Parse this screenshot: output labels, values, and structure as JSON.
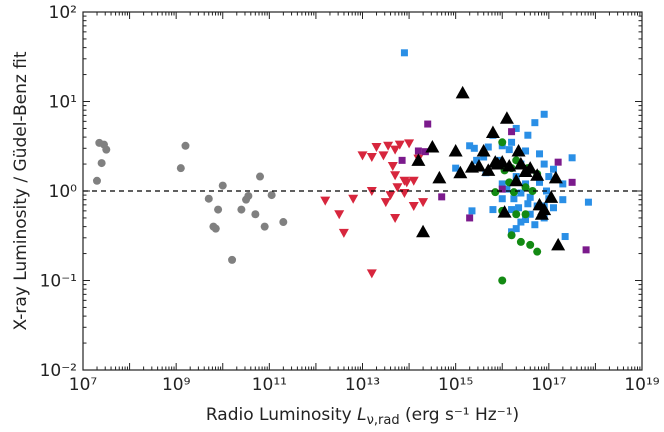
{
  "chart_data": {
    "type": "scatter",
    "xscale": "log",
    "yscale": "log",
    "xlim": [
      10000000.0,
      1e+19
    ],
    "ylim": [
      0.01,
      100
    ],
    "xlabel": "Radio Luminosity Lν,rad (erg s⁻¹ Hz⁻¹)",
    "ylabel": "X-ray Luminosity / Güdel-Benz fit",
    "x_ticks": [
      7,
      9,
      11,
      13,
      15,
      17,
      19
    ],
    "y_ticks": [
      -2,
      -1,
      0,
      1,
      2
    ],
    "x_tick_labels": [
      "10⁷",
      "10⁹",
      "10¹¹",
      "10¹³",
      "10¹⁵",
      "10¹⁷",
      "10¹⁹"
    ],
    "y_tick_labels": [
      "10⁻²",
      "10⁻¹",
      "10⁰",
      "10¹",
      "10²"
    ],
    "reference_line": {
      "y": 1.0,
      "style": "dashed"
    },
    "series": [
      {
        "name": "gray circles",
        "marker": "circle",
        "color": "#808080",
        "points": [
          [
            7.35,
            3.45
          ],
          [
            7.45,
            3.3
          ],
          [
            7.5,
            2.9
          ],
          [
            7.4,
            2.05
          ],
          [
            7.3,
            1.3
          ],
          [
            9.2,
            3.2
          ],
          [
            9.1,
            1.8
          ],
          [
            10.0,
            1.15
          ],
          [
            9.7,
            0.82
          ],
          [
            10.4,
            0.62
          ],
          [
            10.5,
            0.8
          ],
          [
            10.55,
            0.88
          ],
          [
            10.8,
            1.45
          ],
          [
            11.05,
            0.9
          ],
          [
            9.9,
            0.62
          ],
          [
            10.7,
            0.55
          ],
          [
            10.9,
            0.4
          ],
          [
            11.3,
            0.45
          ],
          [
            9.8,
            0.4
          ],
          [
            9.85,
            0.38
          ],
          [
            10.2,
            0.17
          ]
        ]
      },
      {
        "name": "red triangles",
        "marker": "triangle-down",
        "color": "#d7263d",
        "points": [
          [
            13.3,
            3.1
          ],
          [
            13.55,
            3.2
          ],
          [
            13.8,
            3.3
          ],
          [
            14.0,
            3.4
          ],
          [
            13.7,
            2.9
          ],
          [
            13.0,
            2.5
          ],
          [
            13.2,
            2.4
          ],
          [
            13.45,
            2.5
          ],
          [
            13.65,
            1.9
          ],
          [
            14.2,
            2.3
          ],
          [
            13.7,
            1.5
          ],
          [
            13.9,
            1.3
          ],
          [
            13.95,
            1.25
          ],
          [
            14.1,
            1.3
          ],
          [
            13.75,
            1.1
          ],
          [
            13.2,
            1.0
          ],
          [
            13.9,
            0.95
          ],
          [
            13.6,
            0.9
          ],
          [
            12.2,
            0.78
          ],
          [
            12.8,
            0.82
          ],
          [
            13.5,
            0.75
          ],
          [
            14.3,
            0.75
          ],
          [
            14.1,
            0.68
          ],
          [
            12.5,
            0.55
          ],
          [
            13.7,
            0.5
          ],
          [
            12.6,
            0.34
          ],
          [
            13.2,
            0.12
          ]
        ]
      },
      {
        "name": "blue squares",
        "marker": "square",
        "color": "#2a8fe6",
        "points": [
          [
            13.9,
            35
          ],
          [
            16.9,
            7.2
          ],
          [
            16.7,
            5.8
          ],
          [
            16.3,
            5.0
          ],
          [
            16.55,
            4.2
          ],
          [
            15.8,
            4.2
          ],
          [
            16.2,
            3.5
          ],
          [
            15.3,
            3.2
          ],
          [
            15.4,
            3.0
          ],
          [
            15.7,
            3.1
          ],
          [
            16.0,
            3.2
          ],
          [
            16.15,
            2.9
          ],
          [
            16.5,
            2.8
          ],
          [
            16.8,
            2.6
          ],
          [
            15.6,
            2.4
          ],
          [
            17.5,
            2.35
          ],
          [
            15.45,
            2.2
          ],
          [
            15.9,
            2.2
          ],
          [
            16.4,
            2.0
          ],
          [
            16.9,
            2.0
          ],
          [
            17.1,
            1.75
          ],
          [
            15.0,
            1.8
          ],
          [
            15.65,
            1.6
          ],
          [
            16.3,
            1.45
          ],
          [
            17.0,
            1.45
          ],
          [
            16.0,
            1.2
          ],
          [
            16.5,
            1.2
          ],
          [
            16.8,
            1.25
          ],
          [
            17.3,
            1.2
          ],
          [
            16.1,
            1.05
          ],
          [
            16.4,
            0.95
          ],
          [
            16.95,
            1.0
          ],
          [
            16.0,
            0.82
          ],
          [
            16.6,
            0.85
          ],
          [
            16.25,
            0.82
          ],
          [
            17.0,
            0.82
          ],
          [
            17.3,
            0.8
          ],
          [
            17.85,
            0.75
          ],
          [
            16.55,
            0.72
          ],
          [
            16.75,
            0.68
          ],
          [
            16.9,
            0.68
          ],
          [
            17.1,
            0.65
          ],
          [
            16.35,
            0.65
          ],
          [
            16.2,
            0.62
          ],
          [
            15.8,
            0.62
          ],
          [
            15.35,
            0.6
          ],
          [
            16.6,
            0.55
          ],
          [
            16.9,
            0.5
          ],
          [
            16.5,
            0.48
          ],
          [
            16.4,
            0.45
          ],
          [
            16.7,
            0.42
          ],
          [
            16.3,
            0.38
          ],
          [
            16.2,
            0.35
          ],
          [
            17.35,
            0.31
          ]
        ]
      },
      {
        "name": "purple squares",
        "marker": "square",
        "color": "#7b1a8c",
        "points": [
          [
            14.4,
            5.6
          ],
          [
            16.2,
            4.6
          ],
          [
            14.2,
            2.8
          ],
          [
            14.35,
            2.75
          ],
          [
            13.85,
            2.2
          ],
          [
            17.2,
            2.1
          ],
          [
            17.5,
            1.25
          ],
          [
            14.7,
            0.86
          ],
          [
            15.3,
            0.5
          ],
          [
            17.8,
            0.22
          ],
          [
            16.0,
            1.05
          ]
        ]
      },
      {
        "name": "green circles",
        "marker": "circle",
        "color": "#138a13",
        "points": [
          [
            16.0,
            3.5
          ],
          [
            16.3,
            2.2
          ],
          [
            16.55,
            1.8
          ],
          [
            16.2,
            1.8
          ],
          [
            16.05,
            1.7
          ],
          [
            16.75,
            1.55
          ],
          [
            16.15,
            1.25
          ],
          [
            16.5,
            1.1
          ],
          [
            16.65,
            1.0
          ],
          [
            15.85,
            0.97
          ],
          [
            16.25,
            0.97
          ],
          [
            16.0,
            0.6
          ],
          [
            16.5,
            0.55
          ],
          [
            16.3,
            0.55
          ],
          [
            16.2,
            0.32
          ],
          [
            16.4,
            0.27
          ],
          [
            16.6,
            0.25
          ],
          [
            16.75,
            0.21
          ],
          [
            16.0,
            0.1
          ]
        ]
      },
      {
        "name": "black triangles",
        "marker": "triangle-up",
        "color": "#000000",
        "points": [
          [
            15.15,
            12.5
          ],
          [
            16.1,
            6.5
          ],
          [
            15.8,
            4.5
          ],
          [
            14.5,
            3.1
          ],
          [
            15.0,
            2.8
          ],
          [
            15.6,
            2.8
          ],
          [
            16.35,
            2.8
          ],
          [
            14.2,
            2.2
          ],
          [
            15.85,
            2.1
          ],
          [
            15.9,
            2.0
          ],
          [
            16.0,
            2.1
          ],
          [
            16.15,
            1.9
          ],
          [
            16.4,
            2.0
          ],
          [
            16.6,
            1.8
          ],
          [
            15.35,
            1.85
          ],
          [
            15.5,
            1.9
          ],
          [
            15.7,
            1.7
          ],
          [
            16.5,
            1.65
          ],
          [
            15.1,
            1.6
          ],
          [
            16.75,
            1.5
          ],
          [
            17.15,
            1.4
          ],
          [
            14.65,
            1.4
          ],
          [
            16.3,
            1.3
          ],
          [
            17.05,
            0.85
          ],
          [
            16.8,
            0.7
          ],
          [
            16.05,
            0.58
          ],
          [
            16.9,
            0.62
          ],
          [
            16.85,
            0.55
          ],
          [
            14.3,
            0.35
          ],
          [
            17.2,
            0.25
          ]
        ]
      }
    ]
  }
}
